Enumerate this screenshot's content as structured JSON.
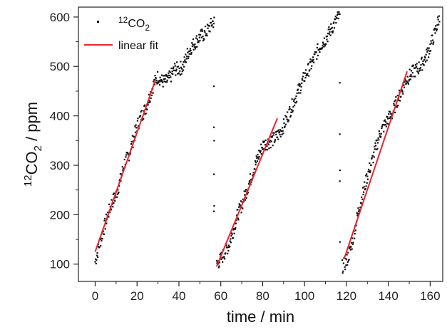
{
  "chart_data": {
    "type": "scatter",
    "xlabel": "time / min",
    "ylabel_parts": {
      "sup": "12",
      "main": "CO",
      "sub": "2",
      "rest": " / ppm"
    },
    "xlim": [
      -8,
      166
    ],
    "ylim": [
      65,
      620
    ],
    "x_ticks": [
      0,
      20,
      40,
      60,
      80,
      100,
      120,
      140,
      160
    ],
    "y_ticks": [
      100,
      200,
      300,
      400,
      500,
      600
    ],
    "legend": {
      "position": "top-left",
      "entries": [
        {
          "kind": "scatter",
          "label_sup": "12",
          "label_main": "CO",
          "label_sub": "2"
        },
        {
          "kind": "line",
          "label": "linear fit"
        }
      ]
    },
    "colors": {
      "points": "#111111",
      "fit": "#e8252a",
      "axis": "#222222"
    },
    "series": [
      {
        "kind": "scatter",
        "segments": [
          {
            "x": [
              0,
              28
            ],
            "anchors": [
              [
                0,
                105
              ],
              [
                2,
                140
              ],
              [
                4,
                170
              ],
              [
                6,
                200
              ],
              [
                8,
                225
              ],
              [
                10,
                240
              ],
              [
                12,
                270
              ],
              [
                14,
                305
              ],
              [
                16,
                320
              ],
              [
                18,
                350
              ],
              [
                20,
                380
              ],
              [
                22,
                400
              ],
              [
                24,
                415
              ],
              [
                26,
                440
              ],
              [
                28,
                465
              ],
              [
                30,
                480
              ],
              [
                32,
                470
              ],
              [
                34,
                470
              ],
              [
                36,
                480
              ],
              [
                38,
                495
              ],
              [
                40,
                495
              ],
              [
                42,
                500
              ],
              [
                44,
                525
              ],
              [
                46,
                540
              ],
              [
                48,
                550
              ],
              [
                50,
                560
              ],
              [
                52,
                565
              ],
              [
                54,
                575
              ],
              [
                56,
                590
              ]
            ],
            "xmax": 57
          },
          {
            "anchors": [
              [
                58,
                100
              ],
              [
                60,
                110
              ],
              [
                62,
                125
              ],
              [
                64,
                140
              ],
              [
                66,
                170
              ],
              [
                68,
                200
              ],
              [
                70,
                220
              ],
              [
                72,
                245
              ],
              [
                74,
                270
              ],
              [
                76,
                295
              ],
              [
                78,
                320
              ],
              [
                80,
                340
              ],
              [
                82,
                345
              ],
              [
                84,
                350
              ],
              [
                86,
                355
              ],
              [
                88,
                365
              ],
              [
                90,
                380
              ],
              [
                92,
                400
              ],
              [
                94,
                420
              ],
              [
                96,
                440
              ],
              [
                98,
                460
              ],
              [
                100,
                480
              ],
              [
                102,
                495
              ],
              [
                104,
                510
              ],
              [
                106,
                530
              ],
              [
                108,
                545
              ],
              [
                110,
                555
              ],
              [
                112,
                570
              ],
              [
                114,
                585
              ],
              [
                116,
                600
              ]
            ],
            "xmax": 117
          },
          {
            "anchors": [
              [
                118,
                95
              ],
              [
                120,
                105
              ],
              [
                122,
                130
              ],
              [
                124,
                170
              ],
              [
                126,
                215
              ],
              [
                128,
                245
              ],
              [
                130,
                280
              ],
              [
                132,
                305
              ],
              [
                134,
                335
              ],
              [
                136,
                365
              ],
              [
                138,
                380
              ],
              [
                140,
                395
              ],
              [
                142,
                405
              ],
              [
                144,
                430
              ],
              [
                146,
                445
              ],
              [
                148,
                470
              ],
              [
                150,
                480
              ],
              [
                152,
                490
              ],
              [
                154,
                495
              ],
              [
                156,
                505
              ],
              [
                158,
                520
              ],
              [
                160,
                540
              ],
              [
                162,
                565
              ],
              [
                164,
                595
              ]
            ],
            "xmax": 164.5
          }
        ],
        "gap_points": [
          [
            56.7,
            460
          ],
          [
            56.7,
            377
          ],
          [
            56.8,
            350
          ],
          [
            56.7,
            282
          ],
          [
            56.8,
            218
          ],
          [
            56.7,
            207
          ],
          [
            116.8,
            467
          ],
          [
            116.8,
            363
          ],
          [
            116.9,
            290
          ],
          [
            116.8,
            268
          ],
          [
            116.9,
            145
          ]
        ]
      },
      {
        "kind": "line",
        "name": "linear fit",
        "segments": [
          {
            "x": [
              0,
              29
            ],
            "y": [
              125,
              475
            ]
          },
          {
            "x": [
              58,
              87
            ],
            "y": [
              95,
              395
            ]
          },
          {
            "x": [
              119,
              149
            ],
            "y": [
              112,
              490
            ]
          }
        ]
      }
    ]
  }
}
